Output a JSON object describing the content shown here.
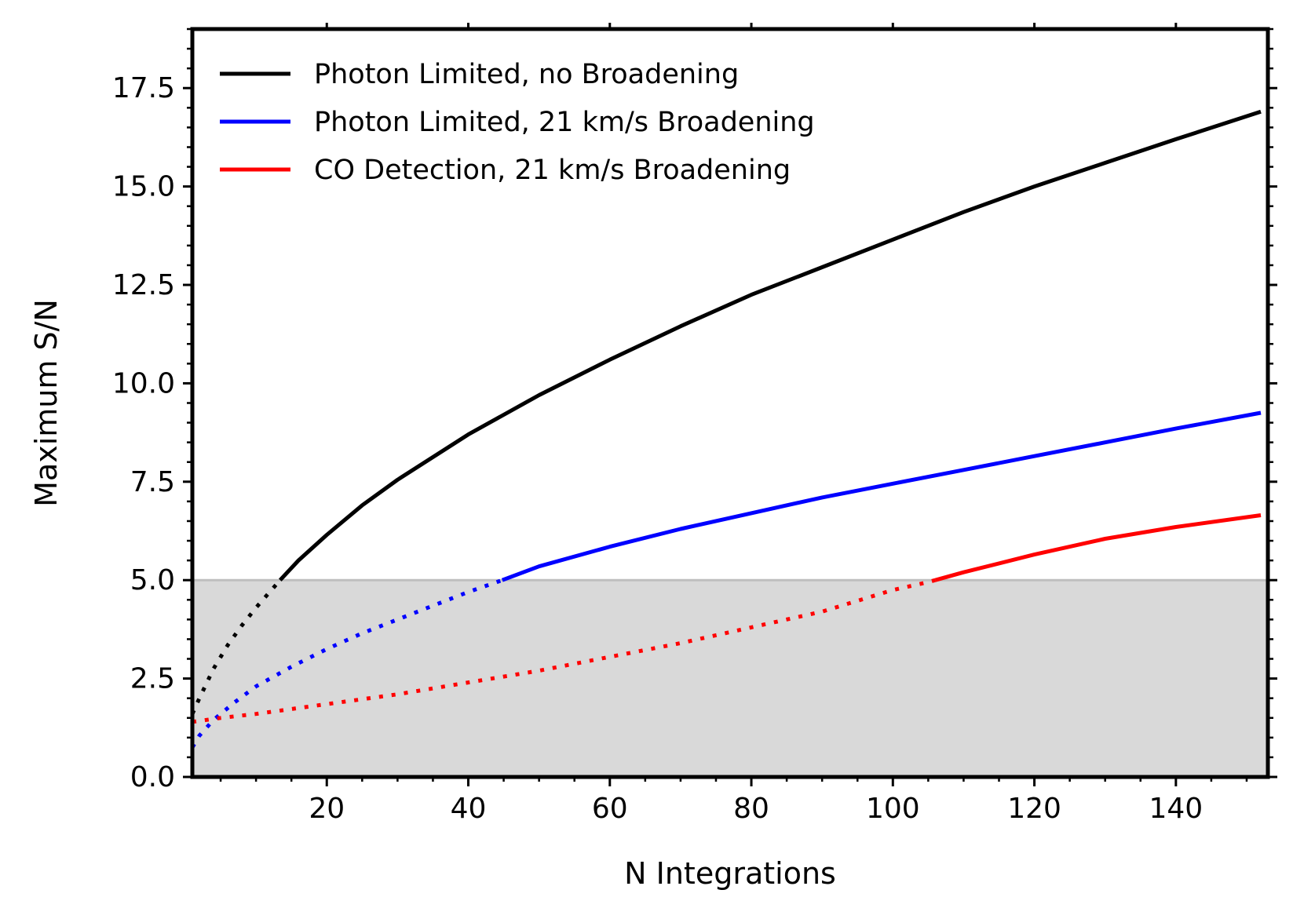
{
  "chart_data": {
    "type": "line",
    "xlabel": "N Integrations",
    "ylabel": "Maximum S/N",
    "xlim": [
      1,
      153
    ],
    "ylim": [
      0,
      19
    ],
    "xticks": [
      20,
      40,
      60,
      80,
      100,
      120,
      140
    ],
    "yticks": [
      0.0,
      2.5,
      5.0,
      7.5,
      10.0,
      12.5,
      15.0,
      17.5
    ],
    "ytick_labels": [
      "0.0",
      "2.5",
      "5.0",
      "7.5",
      "10.0",
      "12.5",
      "15.0",
      "17.5"
    ],
    "threshold": 5.0,
    "shaded_region": {
      "y_from": 0,
      "y_to": 5.0,
      "color": "#d9d9d9"
    },
    "grid": false,
    "legend_position": "top-left",
    "series": [
      {
        "name": "Photon Limited, no Broadening",
        "color": "#000000",
        "x": [
          1,
          2,
          4,
          6,
          8,
          10,
          13.4,
          16,
          20,
          25,
          30,
          40,
          50,
          60,
          70,
          80,
          90,
          100,
          110,
          120,
          130,
          140,
          152
        ],
        "y": [
          1.6,
          2.0,
          2.75,
          3.35,
          3.85,
          4.3,
          5.0,
          5.5,
          6.15,
          6.9,
          7.55,
          8.7,
          9.7,
          10.6,
          11.45,
          12.25,
          12.95,
          13.65,
          14.35,
          15.0,
          15.6,
          16.2,
          16.9
        ]
      },
      {
        "name": "Photon Limited, 21 km/s Broadening",
        "color": "#0000ff",
        "x": [
          1,
          2,
          4,
          7,
          10,
          15,
          20,
          25,
          30,
          35,
          40,
          44.5,
          50,
          60,
          70,
          80,
          90,
          100,
          110,
          120,
          130,
          140,
          152
        ],
        "y": [
          0.75,
          1.05,
          1.45,
          1.9,
          2.3,
          2.8,
          3.25,
          3.65,
          4.0,
          4.35,
          4.7,
          4.98,
          5.35,
          5.85,
          6.3,
          6.7,
          7.1,
          7.45,
          7.8,
          8.15,
          8.5,
          8.85,
          9.25
        ]
      },
      {
        "name": "CO Detection, 21 km/s Broadening",
        "color": "#ff0000",
        "x": [
          1,
          5,
          10,
          20,
          30,
          40,
          50,
          60,
          70,
          80,
          90,
          100,
          105,
          110,
          120,
          130,
          140,
          152
        ],
        "y": [
          1.4,
          1.5,
          1.6,
          1.85,
          2.1,
          2.4,
          2.7,
          3.05,
          3.4,
          3.8,
          4.2,
          4.75,
          4.95,
          5.2,
          5.65,
          6.05,
          6.35,
          6.65
        ]
      }
    ]
  }
}
